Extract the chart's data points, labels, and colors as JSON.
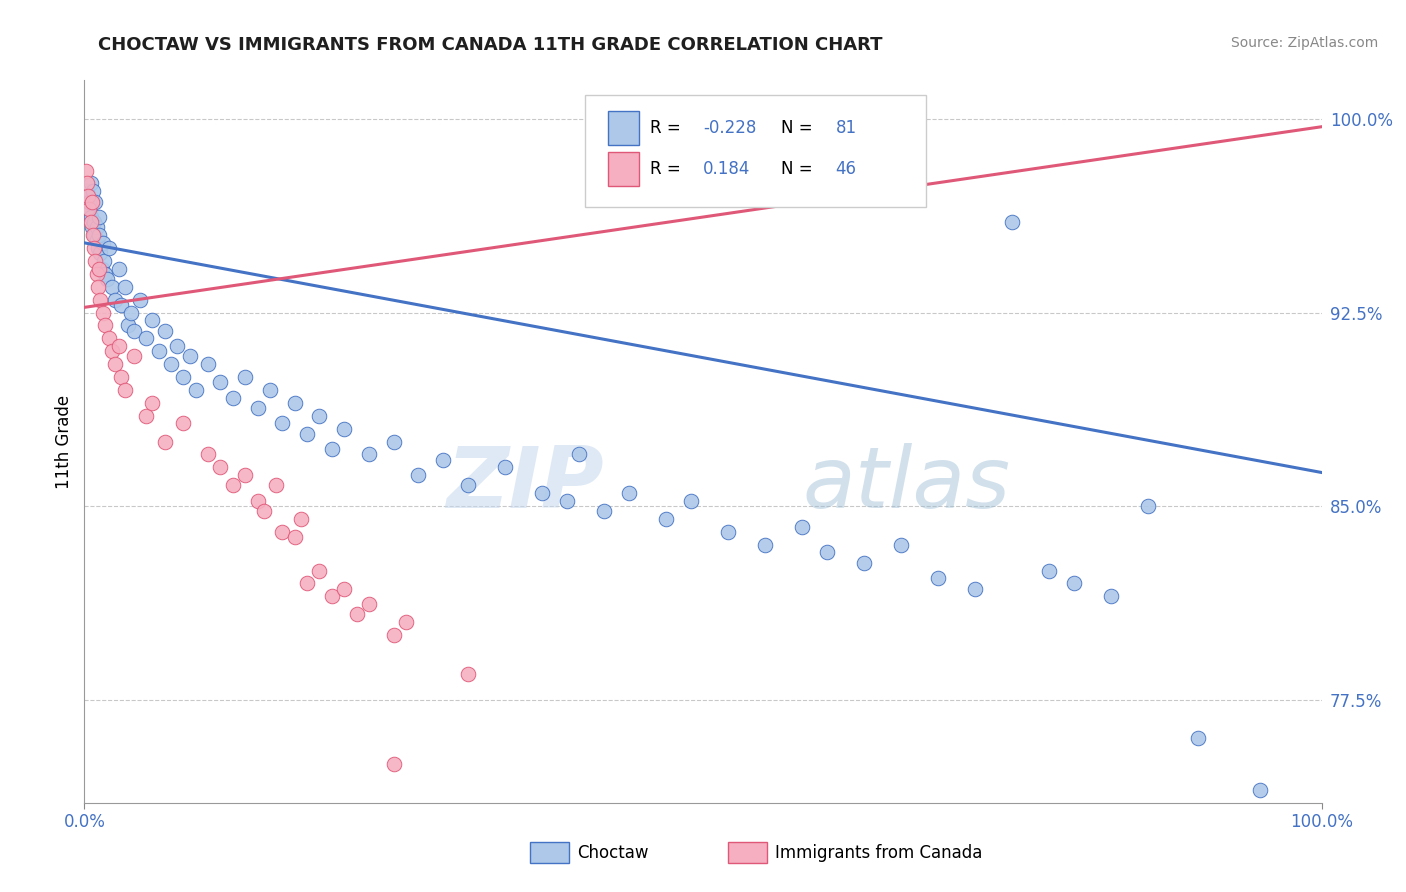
{
  "title": "CHOCTAW VS IMMIGRANTS FROM CANADA 11TH GRADE CORRELATION CHART",
  "ylabel": "11th Grade",
  "source_text": "Source: ZipAtlas.com",
  "watermark_zip": "ZIP",
  "watermark_atlas": "atlas",
  "xmin": 0.0,
  "xmax": 1.0,
  "ymin": 0.735,
  "ymax": 1.015,
  "yticks": [
    0.775,
    0.85,
    0.925,
    1.0
  ],
  "ytick_labels": [
    "77.5%",
    "85.0%",
    "92.5%",
    "100.0%"
  ],
  "xtick_labels": [
    "0.0%",
    "100.0%"
  ],
  "legend_blue_r": "-0.228",
  "legend_blue_n": "81",
  "legend_pink_r": "0.184",
  "legend_pink_n": "46",
  "legend_label_blue": "Choctaw",
  "legend_label_pink": "Immigrants from Canada",
  "blue_color": "#adc8e8",
  "pink_color": "#f5afc0",
  "trend_blue_color": "#4472c4",
  "trend_pink_color": "#e05878",
  "title_color": "#1f1f1f",
  "tick_color": "#4472c4",
  "blue_scatter": [
    [
      0.001,
      0.97
    ],
    [
      0.002,
      0.972
    ],
    [
      0.003,
      0.965
    ],
    [
      0.004,
      0.968
    ],
    [
      0.005,
      0.962
    ],
    [
      0.005,
      0.975
    ],
    [
      0.006,
      0.958
    ],
    [
      0.007,
      0.972
    ],
    [
      0.008,
      0.955
    ],
    [
      0.008,
      0.96
    ],
    [
      0.009,
      0.968
    ],
    [
      0.01,
      0.953
    ],
    [
      0.01,
      0.958
    ],
    [
      0.011,
      0.95
    ],
    [
      0.012,
      0.955
    ],
    [
      0.012,
      0.962
    ],
    [
      0.013,
      0.948
    ],
    [
      0.014,
      0.942
    ],
    [
      0.015,
      0.952
    ],
    [
      0.016,
      0.945
    ],
    [
      0.017,
      0.94
    ],
    [
      0.018,
      0.938
    ],
    [
      0.02,
      0.95
    ],
    [
      0.022,
      0.935
    ],
    [
      0.025,
      0.93
    ],
    [
      0.028,
      0.942
    ],
    [
      0.03,
      0.928
    ],
    [
      0.033,
      0.935
    ],
    [
      0.035,
      0.92
    ],
    [
      0.038,
      0.925
    ],
    [
      0.04,
      0.918
    ],
    [
      0.045,
      0.93
    ],
    [
      0.05,
      0.915
    ],
    [
      0.055,
      0.922
    ],
    [
      0.06,
      0.91
    ],
    [
      0.065,
      0.918
    ],
    [
      0.07,
      0.905
    ],
    [
      0.075,
      0.912
    ],
    [
      0.08,
      0.9
    ],
    [
      0.085,
      0.908
    ],
    [
      0.09,
      0.895
    ],
    [
      0.1,
      0.905
    ],
    [
      0.11,
      0.898
    ],
    [
      0.12,
      0.892
    ],
    [
      0.13,
      0.9
    ],
    [
      0.14,
      0.888
    ],
    [
      0.15,
      0.895
    ],
    [
      0.16,
      0.882
    ],
    [
      0.17,
      0.89
    ],
    [
      0.18,
      0.878
    ],
    [
      0.19,
      0.885
    ],
    [
      0.2,
      0.872
    ],
    [
      0.21,
      0.88
    ],
    [
      0.23,
      0.87
    ],
    [
      0.25,
      0.875
    ],
    [
      0.27,
      0.862
    ],
    [
      0.29,
      0.868
    ],
    [
      0.31,
      0.858
    ],
    [
      0.34,
      0.865
    ],
    [
      0.37,
      0.855
    ],
    [
      0.39,
      0.852
    ],
    [
      0.4,
      0.87
    ],
    [
      0.42,
      0.848
    ],
    [
      0.44,
      0.855
    ],
    [
      0.47,
      0.845
    ],
    [
      0.49,
      0.852
    ],
    [
      0.52,
      0.84
    ],
    [
      0.55,
      0.835
    ],
    [
      0.58,
      0.842
    ],
    [
      0.6,
      0.832
    ],
    [
      0.63,
      0.828
    ],
    [
      0.66,
      0.835
    ],
    [
      0.69,
      0.822
    ],
    [
      0.72,
      0.818
    ],
    [
      0.75,
      0.96
    ],
    [
      0.78,
      0.825
    ],
    [
      0.8,
      0.82
    ],
    [
      0.83,
      0.815
    ],
    [
      0.86,
      0.85
    ],
    [
      0.9,
      0.76
    ],
    [
      0.95,
      0.74
    ]
  ],
  "pink_scatter": [
    [
      0.001,
      0.98
    ],
    [
      0.002,
      0.975
    ],
    [
      0.003,
      0.97
    ],
    [
      0.004,
      0.965
    ],
    [
      0.005,
      0.96
    ],
    [
      0.006,
      0.968
    ],
    [
      0.007,
      0.955
    ],
    [
      0.008,
      0.95
    ],
    [
      0.009,
      0.945
    ],
    [
      0.01,
      0.94
    ],
    [
      0.011,
      0.935
    ],
    [
      0.012,
      0.942
    ],
    [
      0.013,
      0.93
    ],
    [
      0.015,
      0.925
    ],
    [
      0.017,
      0.92
    ],
    [
      0.02,
      0.915
    ],
    [
      0.022,
      0.91
    ],
    [
      0.025,
      0.905
    ],
    [
      0.028,
      0.912
    ],
    [
      0.03,
      0.9
    ],
    [
      0.033,
      0.895
    ],
    [
      0.04,
      0.908
    ],
    [
      0.05,
      0.885
    ],
    [
      0.055,
      0.89
    ],
    [
      0.065,
      0.875
    ],
    [
      0.08,
      0.882
    ],
    [
      0.1,
      0.87
    ],
    [
      0.11,
      0.865
    ],
    [
      0.12,
      0.858
    ],
    [
      0.13,
      0.862
    ],
    [
      0.14,
      0.852
    ],
    [
      0.145,
      0.848
    ],
    [
      0.155,
      0.858
    ],
    [
      0.16,
      0.84
    ],
    [
      0.17,
      0.838
    ],
    [
      0.175,
      0.845
    ],
    [
      0.18,
      0.82
    ],
    [
      0.19,
      0.825
    ],
    [
      0.2,
      0.815
    ],
    [
      0.21,
      0.818
    ],
    [
      0.22,
      0.808
    ],
    [
      0.23,
      0.812
    ],
    [
      0.25,
      0.8
    ],
    [
      0.26,
      0.805
    ],
    [
      0.25,
      0.75
    ],
    [
      0.31,
      0.785
    ]
  ],
  "blue_trend_x": [
    0.0,
    1.0
  ],
  "blue_trend_y": [
    0.952,
    0.863
  ],
  "pink_trend_x": [
    0.0,
    1.0
  ],
  "pink_trend_y": [
    0.927,
    0.997
  ]
}
